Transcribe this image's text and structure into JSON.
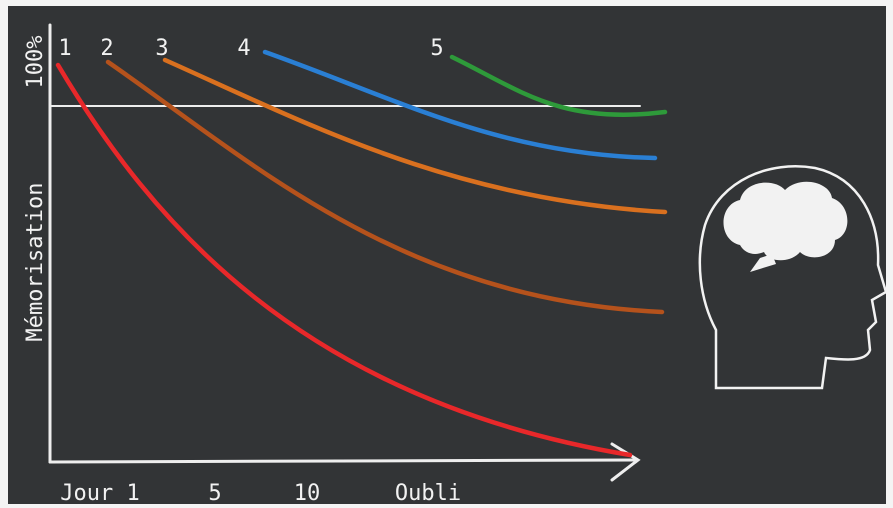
{
  "axes": {
    "y_label": "Mémorisation",
    "y_top": "100%",
    "x_labels": [
      "Jour 1",
      "5",
      "10",
      "Oubli"
    ]
  },
  "curves": [
    {
      "label": "1"
    },
    {
      "label": "2"
    },
    {
      "label": "3"
    },
    {
      "label": "4"
    },
    {
      "label": "5"
    }
  ]
}
